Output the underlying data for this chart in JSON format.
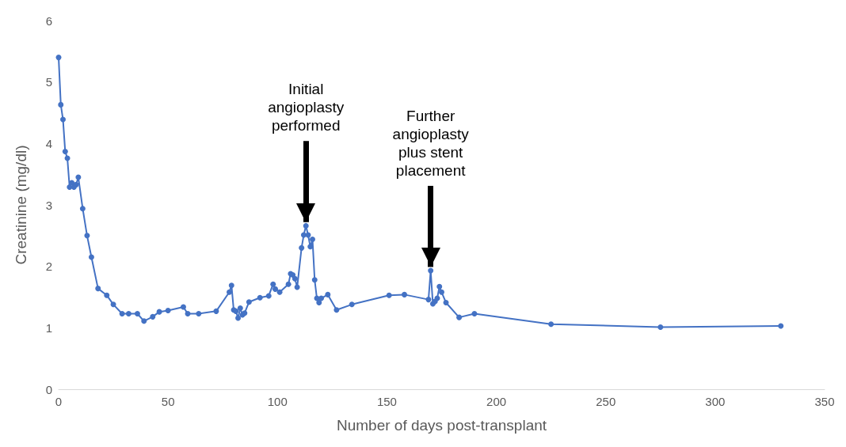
{
  "chart_data": {
    "type": "line",
    "xlabel": "Number of days post-transplant",
    "ylabel": "Creatinine (mg/dl)",
    "x": [
      0,
      1,
      2,
      3,
      4,
      5,
      6,
      7,
      8,
      9,
      11,
      13,
      15,
      18,
      22,
      25,
      29,
      32,
      36,
      39,
      43,
      46,
      50,
      57,
      59,
      64,
      72,
      78,
      79,
      80,
      81,
      82,
      83,
      84,
      85,
      87,
      92,
      96,
      98,
      99,
      101,
      105,
      106,
      107,
      108,
      109,
      111,
      112,
      113,
      114,
      115,
      116,
      117,
      118,
      119,
      120,
      123,
      127,
      134,
      151,
      158,
      169,
      170,
      171,
      172,
      173,
      174,
      175,
      177,
      183,
      190,
      225,
      275,
      330
    ],
    "series": [
      {
        "color": "#4472c4",
        "values": [
          5.4,
          4.63,
          4.39,
          3.87,
          3.76,
          3.29,
          3.36,
          3.29,
          3.33,
          3.45,
          2.94,
          2.5,
          2.15,
          1.64,
          1.53,
          1.38,
          1.23,
          1.23,
          1.23,
          1.11,
          1.18,
          1.26,
          1.28,
          1.34,
          1.23,
          1.23,
          1.27,
          1.58,
          1.69,
          1.29,
          1.27,
          1.16,
          1.32,
          1.21,
          1.24,
          1.42,
          1.49,
          1.52,
          1.71,
          1.63,
          1.58,
          1.71,
          1.88,
          1.86,
          1.8,
          1.66,
          2.3,
          2.51,
          2.66,
          2.51,
          2.32,
          2.44,
          1.78,
          1.48,
          1.41,
          1.48,
          1.54,
          1.29,
          1.38,
          1.53,
          1.54,
          1.46,
          1.93,
          1.39,
          1.43,
          1.48,
          1.67,
          1.58,
          1.41,
          1.17,
          1.23,
          1.06,
          1.01,
          1.03
        ]
      }
    ],
    "xlim": [
      0,
      350
    ],
    "xticks": [
      0,
      50,
      100,
      150,
      200,
      250,
      300,
      350
    ],
    "ylim": [
      0,
      6
    ],
    "yticks": [
      0,
      1,
      2,
      3,
      4,
      5,
      6
    ],
    "grid": false,
    "marker": "circle",
    "line_style": "solid",
    "annotations": [
      {
        "text": "Initial\nangioplasty\nperformed",
        "x": 113,
        "y": 2.66
      },
      {
        "text": "Further\nangioplasty\nplus stent\nplacement",
        "x": 170,
        "y": 1.93
      }
    ]
  }
}
